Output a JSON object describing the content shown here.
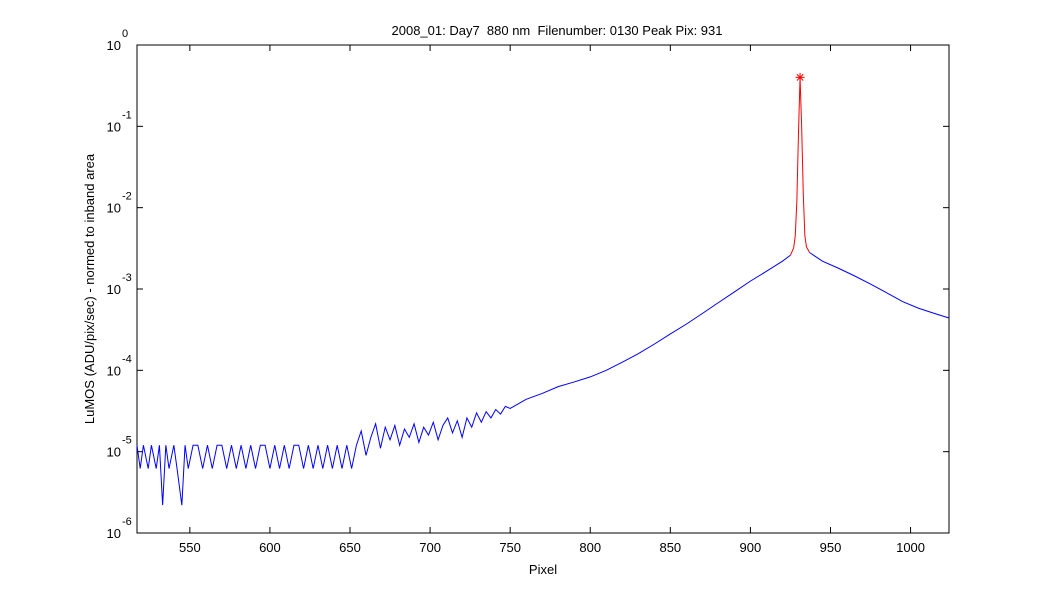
{
  "chart_data": {
    "type": "line",
    "title": "2008_01: Day7  880 nm  Filenumber: 0130 Peak Pix: 931",
    "xlabel": "Pixel",
    "ylabel": "LuMOS (ADU/pix/sec) - normed to inband area",
    "xlim": [
      517,
      1024
    ],
    "ylim": [
      1e-06,
      1
    ],
    "yscale": "log",
    "xticks": [
      550,
      600,
      650,
      700,
      750,
      800,
      850,
      900,
      950,
      1000
    ],
    "yticks": [
      {
        "value": 1e-06,
        "label": "10",
        "exponent": "-6"
      },
      {
        "value": 1e-05,
        "label": "10",
        "exponent": "-5"
      },
      {
        "value": 0.0001,
        "label": "10",
        "exponent": "-4"
      },
      {
        "value": 0.001,
        "label": "10",
        "exponent": "-3"
      },
      {
        "value": 0.01,
        "label": "10",
        "exponent": "-2"
      },
      {
        "value": 0.1,
        "label": "10",
        "exponent": "-1"
      },
      {
        "value": 1,
        "label": "10",
        "exponent": "0"
      }
    ],
    "grid": false,
    "series": [
      {
        "color": "#0000ff",
        "x": [
          517,
          519,
          521,
          524,
          526,
          529,
          531,
          533,
          535,
          537,
          540,
          542,
          545,
          547,
          549,
          552,
          555,
          558,
          561,
          564,
          567,
          570,
          573,
          576,
          579,
          582,
          585,
          588,
          591,
          594,
          597,
          600,
          603,
          606,
          609,
          612,
          615,
          618,
          621,
          624,
          627,
          630,
          633,
          636,
          639,
          642,
          645,
          648,
          651,
          654,
          657,
          660,
          663,
          666,
          669,
          672,
          675,
          678,
          681,
          684,
          687,
          690,
          693,
          696,
          699,
          702,
          705,
          708,
          711,
          714,
          717,
          720,
          723,
          726,
          729,
          732,
          735,
          738,
          741,
          744,
          747,
          750,
          760,
          770,
          780,
          790,
          800,
          810,
          820,
          830,
          840,
          850,
          860,
          870,
          880,
          890,
          900,
          910,
          920,
          925
        ],
        "values": [
          1.2e-05,
          6.2e-06,
          1.2e-05,
          6.2e-06,
          1.2e-05,
          6.2e-06,
          1.2e-05,
          2.2e-06,
          1.2e-05,
          6.2e-06,
          1.2e-05,
          6.2e-06,
          2.2e-06,
          1.2e-05,
          6.2e-06,
          1.2e-05,
          1.2e-05,
          6.2e-06,
          1.2e-05,
          6.2e-06,
          1.2e-05,
          1.2e-05,
          6.2e-06,
          1.2e-05,
          6.2e-06,
          1.2e-05,
          6.2e-06,
          1.2e-05,
          6.2e-06,
          1.2e-05,
          1.2e-05,
          6.2e-06,
          1.2e-05,
          6.2e-06,
          1.2e-05,
          6.2e-06,
          1.2e-05,
          1.2e-05,
          6.2e-06,
          1.2e-05,
          6.2e-06,
          1.2e-05,
          6.2e-06,
          1.2e-05,
          6.2e-06,
          1.2e-05,
          6.2e-06,
          1.2e-05,
          6.2e-06,
          1.2e-05,
          1.8e-05,
          9e-06,
          1.5e-05,
          2.2e-05,
          1.1e-05,
          2e-05,
          1.4e-05,
          2.1e-05,
          1.2e-05,
          1.9e-05,
          1.5e-05,
          2.2e-05,
          1.3e-05,
          2e-05,
          1.6e-05,
          2.3e-05,
          1.4e-05,
          2.1e-05,
          2.6e-05,
          1.7e-05,
          2.4e-05,
          1.5e-05,
          2.6e-05,
          2e-05,
          3e-05,
          2.3e-05,
          3.1e-05,
          2.6e-05,
          3.3e-05,
          2.9e-05,
          3.6e-05,
          3.4e-05,
          4.4e-05,
          5.2e-05,
          6.3e-05,
          7.2e-05,
          8.3e-05,
          0.0001,
          0.000126,
          0.00016,
          0.00021,
          0.00028,
          0.00037,
          0.0005,
          0.00068,
          0.00092,
          0.00125,
          0.00165,
          0.0022,
          0.0026
        ]
      },
      {
        "color": "#ff0000",
        "x": [
          925,
          927,
          928,
          929,
          930,
          931,
          932,
          933,
          934,
          935,
          937
        ],
        "values": [
          0.0026,
          0.0032,
          0.0045,
          0.012,
          0.08,
          0.4,
          0.1,
          0.015,
          0.0045,
          0.0033,
          0.0028
        ]
      },
      {
        "color": "#0000ff",
        "x": [
          937,
          945,
          955,
          965,
          975,
          985,
          995,
          1005,
          1015,
          1024
        ],
        "values": [
          0.0028,
          0.0022,
          0.0018,
          0.00145,
          0.00115,
          0.0009,
          0.0007,
          0.00058,
          0.0005,
          0.00044
        ]
      }
    ],
    "peak": {
      "x": 931,
      "value": 0.4,
      "color": "#ff0000"
    }
  }
}
